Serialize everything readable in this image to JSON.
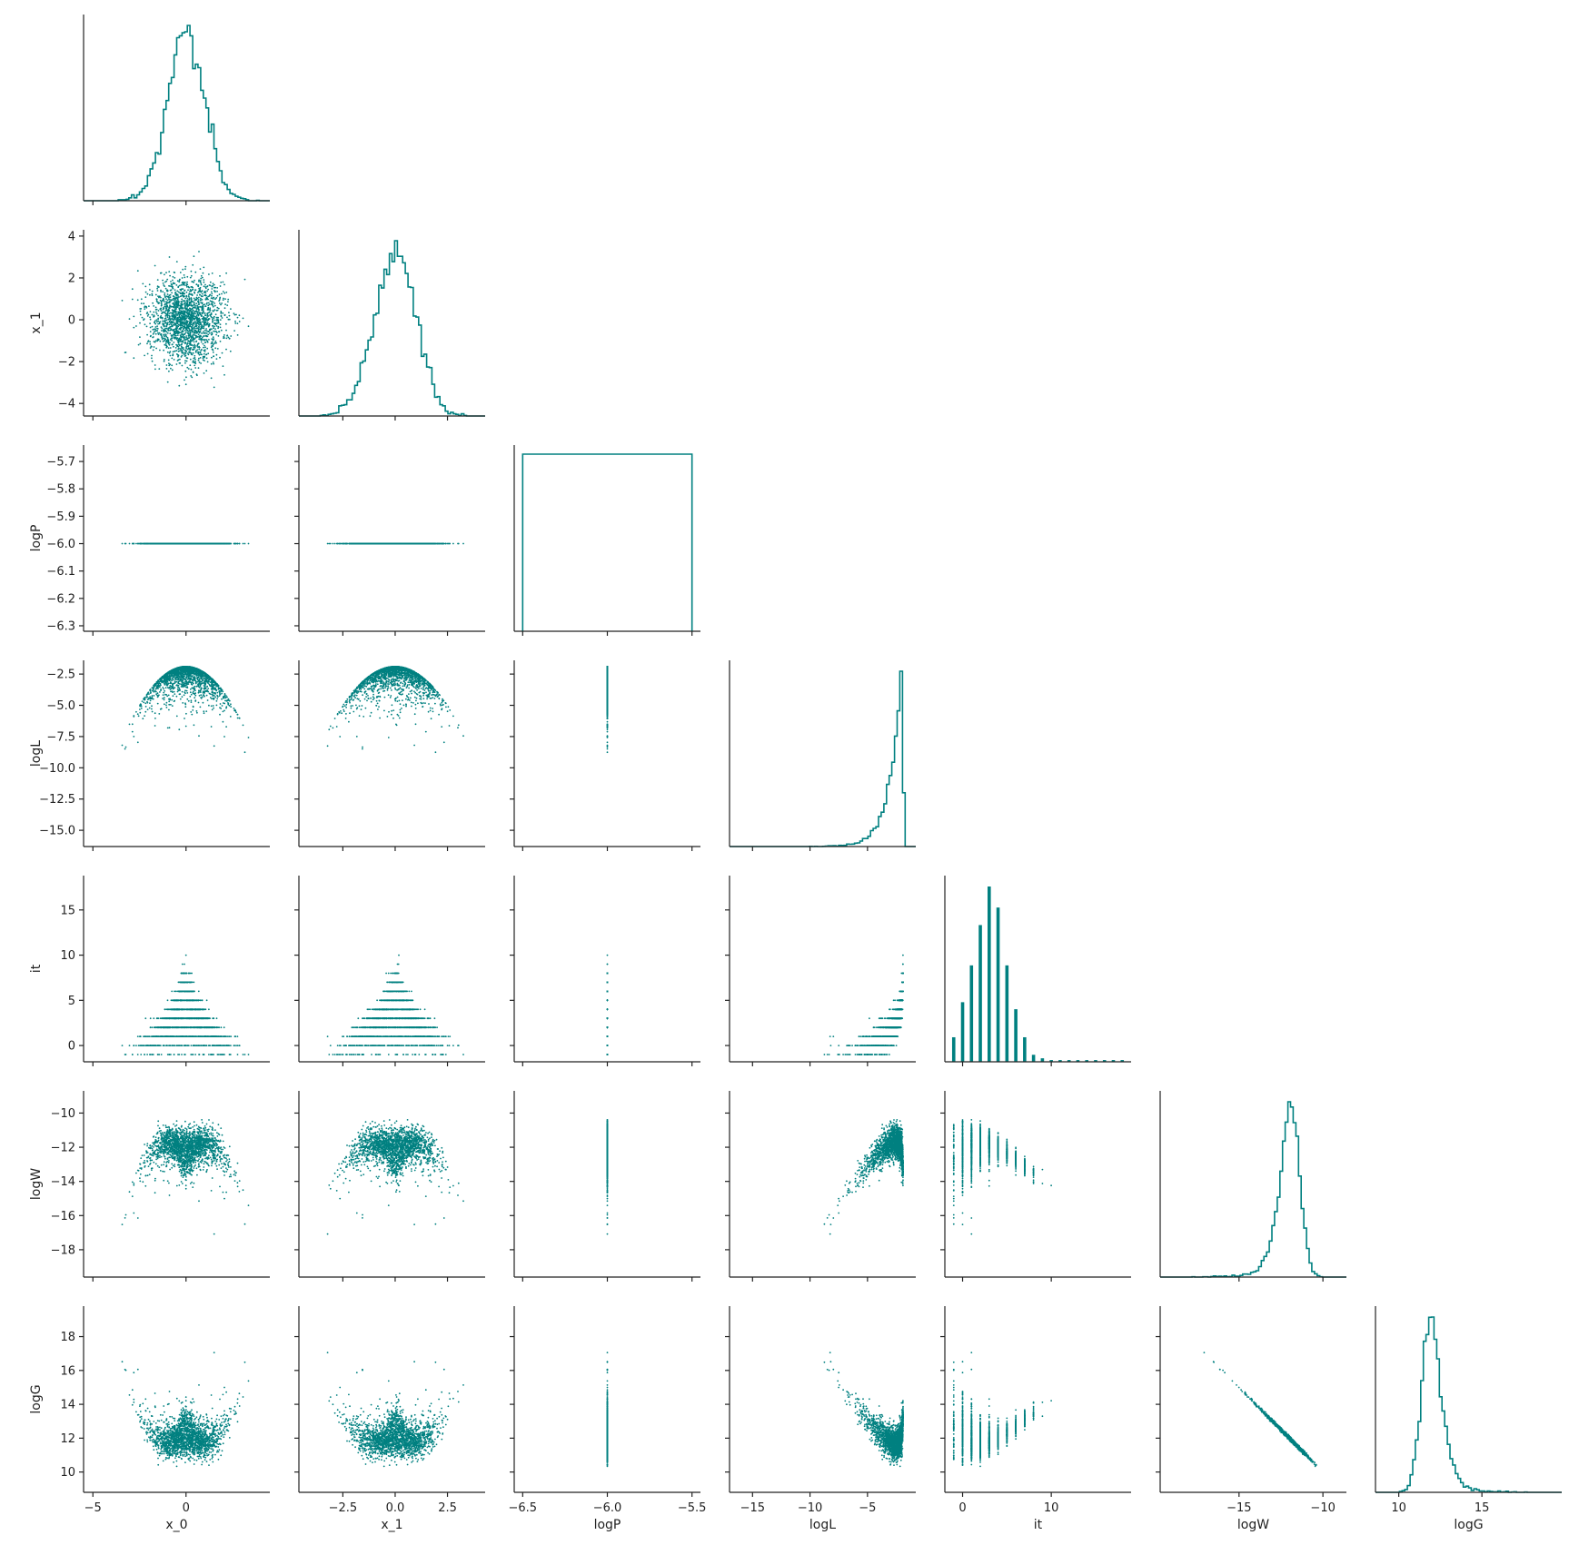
{
  "chart_data": {
    "type": "scatter",
    "kind": "corner pair plot (lower triangle scatter, diagonal step histograms)",
    "color": "#008080",
    "background": "#ffffff",
    "grid": false,
    "variables": [
      "x_0",
      "x_1",
      "logP",
      "logL",
      "it",
      "logW",
      "logG"
    ],
    "axes": {
      "x_0": {
        "range": [
          -5.5,
          4.5
        ],
        "ticks": [
          -5,
          0
        ],
        "tick_labels": [
          "−5",
          "0"
        ]
      },
      "x_1": {
        "range": [
          -4.6,
          4.3
        ],
        "ticks": [
          -2.5,
          0.0,
          2.5
        ],
        "tick_labels": [
          "−2.5",
          "0.0",
          "2.5"
        ],
        "row_ticks": [
          -4,
          -2,
          0,
          2,
          4
        ],
        "row_tick_labels": [
          "−4",
          "−2",
          "0",
          "2",
          "4"
        ]
      },
      "logP": {
        "range": [
          -6.55,
          -5.45
        ],
        "ticks": [
          -6.5,
          -6.0,
          -5.5
        ],
        "tick_labels": [
          "−6.5",
          "−6.0",
          "−5.5"
        ],
        "row_range": [
          -6.32,
          -5.64
        ],
        "row_ticks": [
          -6.3,
          -6.2,
          -6.1,
          -6.0,
          -5.9,
          -5.8,
          -5.7
        ],
        "row_tick_labels": [
          "−6.3",
          "−6.2",
          "−6.1",
          "−6.0",
          "−5.9",
          "−5.8",
          "−5.7"
        ]
      },
      "logL": {
        "range": [
          -17.0,
          -0.8
        ],
        "ticks": [
          -15,
          -10,
          -5
        ],
        "tick_labels": [
          "−15",
          "−10",
          "−5"
        ],
        "row_range": [
          -16.3,
          -1.4
        ],
        "row_ticks": [
          -15.0,
          -12.5,
          -10.0,
          -7.5,
          -5.0,
          -2.5
        ],
        "row_tick_labels": [
          "−15.0",
          "−12.5",
          "−10.0",
          "−7.5",
          "−5.0",
          "−2.5"
        ]
      },
      "it": {
        "range": [
          -2.0,
          19.0
        ],
        "ticks": [
          0,
          10
        ],
        "tick_labels": [
          "0",
          "10"
        ],
        "row_range": [
          -1.8,
          18.8
        ],
        "row_ticks": [
          0,
          5,
          10,
          15
        ],
        "row_tick_labels": [
          "0",
          "5",
          "10",
          "15"
        ]
      },
      "logW": {
        "range": [
          -19.7,
          -8.6
        ],
        "ticks": [
          -15,
          -10
        ],
        "tick_labels": [
          "−15",
          "−10"
        ],
        "row_range": [
          -19.6,
          -8.7
        ],
        "row_ticks": [
          -18,
          -16,
          -14,
          -12,
          -10
        ],
        "row_tick_labels": [
          "−18",
          "−16",
          "−14",
          "−12",
          "−10"
        ]
      },
      "logG": {
        "range": [
          8.6,
          19.8
        ],
        "ticks": [
          10,
          15
        ],
        "tick_labels": [
          "10",
          "15"
        ],
        "row_range": [
          8.8,
          19.8
        ],
        "row_ticks": [
          10,
          12,
          14,
          16,
          18
        ],
        "row_tick_labels": [
          "10",
          "12",
          "14",
          "16",
          "18"
        ]
      }
    },
    "diagonal_histograms": {
      "x_0": {
        "shape": "normal",
        "mean": 0.0,
        "sd": 1.0
      },
      "x_1": {
        "shape": "normal",
        "mean": 0.0,
        "sd": 1.0
      },
      "logP": {
        "shape": "single flat bin",
        "from": -6.5,
        "to": -5.5
      },
      "logL": {
        "shape": "sharply rising toward maximum",
        "max": -1.9
      },
      "it": {
        "shape": "discrete bars",
        "x": [
          -1,
          0,
          1,
          2,
          3,
          4,
          5,
          6,
          7,
          8,
          9,
          10,
          11,
          12,
          13,
          14,
          15,
          16,
          17,
          18
        ],
        "relative_counts": [
          0.14,
          0.34,
          0.55,
          0.78,
          1.0,
          0.88,
          0.55,
          0.3,
          0.14,
          0.04,
          0.02,
          0.01,
          0.01,
          0.01,
          0.01,
          0.01,
          0.01,
          0.01,
          0.01,
          0.01
        ]
      },
      "logW": {
        "shape": "skewed peak",
        "peak": -12.2
      },
      "logG": {
        "shape": "skewed peak",
        "peak": 12.3
      }
    },
    "relations": {
      "logP": "constant -6.0",
      "logL": "logL ≈ -1.9 - 0.5*(x_0² + x_1²)",
      "it": "integer iteration index from -1 to 18, more spread at low it",
      "logW": "≈ logL - 8 - 0.75*it",
      "logG": "≈ -logW"
    }
  }
}
